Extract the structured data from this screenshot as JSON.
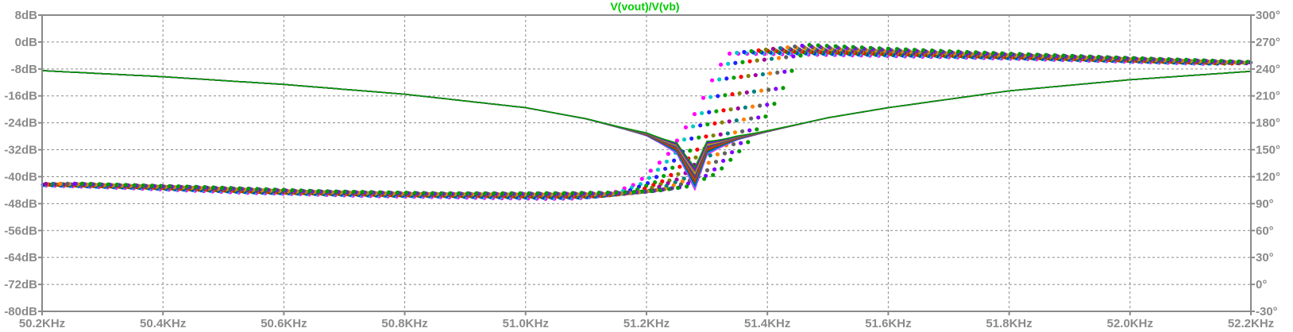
{
  "chart_data": {
    "type": "line",
    "title": "V(vout)/V(vb)",
    "title_color": "#00cc00",
    "x_axis": {
      "range": [
        50.2,
        52.2
      ],
      "unit": "KHz",
      "ticks": [
        "50.2KHz",
        "50.4KHz",
        "50.6KHz",
        "50.8KHz",
        "51.0KHz",
        "51.2KHz",
        "51.4KHz",
        "51.6KHz",
        "51.8KHz",
        "52.0KHz",
        "52.2KHz"
      ]
    },
    "y_left": {
      "range": [
        -80,
        8
      ],
      "unit": "dB",
      "ticks": [
        "8dB",
        "0dB",
        "-8dB",
        "-16dB",
        "-24dB",
        "-32dB",
        "-40dB",
        "-48dB",
        "-56dB",
        "-64dB",
        "-72dB",
        "-80dB"
      ]
    },
    "y_right": {
      "range": [
        -30,
        300
      ],
      "unit": "°",
      "ticks": [
        "300°",
        "270°",
        "240°",
        "210°",
        "180°",
        "150°",
        "120°",
        "90°",
        "60°",
        "30°",
        "0°",
        "-30°"
      ]
    },
    "grid": true,
    "magnitude_curve": {
      "x": [
        50.2,
        50.4,
        50.6,
        50.8,
        51.0,
        51.1,
        51.2,
        51.25,
        51.28,
        51.3,
        51.35,
        51.4,
        51.5,
        51.6,
        51.8,
        52.0,
        52.2
      ],
      "y": [
        -8.5,
        -10.3,
        -12.6,
        -15.5,
        -19.5,
        -22.8,
        -27.4,
        -31.5,
        -40.5,
        -31.5,
        -28.5,
        -26.5,
        -22.5,
        -19.5,
        -14.5,
        -11.2,
        -8.7
      ]
    },
    "phase_curve": {
      "x": [
        50.2,
        50.4,
        50.6,
        50.8,
        51.0,
        51.1,
        51.15,
        51.2,
        51.25,
        51.3,
        51.35,
        51.38,
        51.4,
        51.5,
        51.6,
        51.8,
        52.0,
        52.2
      ],
      "y": [
        112,
        108,
        103,
        100,
        99,
        99,
        100,
        104,
        118,
        150,
        200,
        240,
        262,
        260,
        258,
        254,
        250,
        246
      ]
    },
    "sweep": {
      "curve_count": 12,
      "colors": [
        "#ff00ff",
        "#00c8c8",
        "#2020ff",
        "#00a000",
        "#ff0000",
        "#808000",
        "#a000a0",
        "#008080",
        "#ff8000",
        "#606060",
        "#8000ff",
        "#009900"
      ]
    }
  }
}
